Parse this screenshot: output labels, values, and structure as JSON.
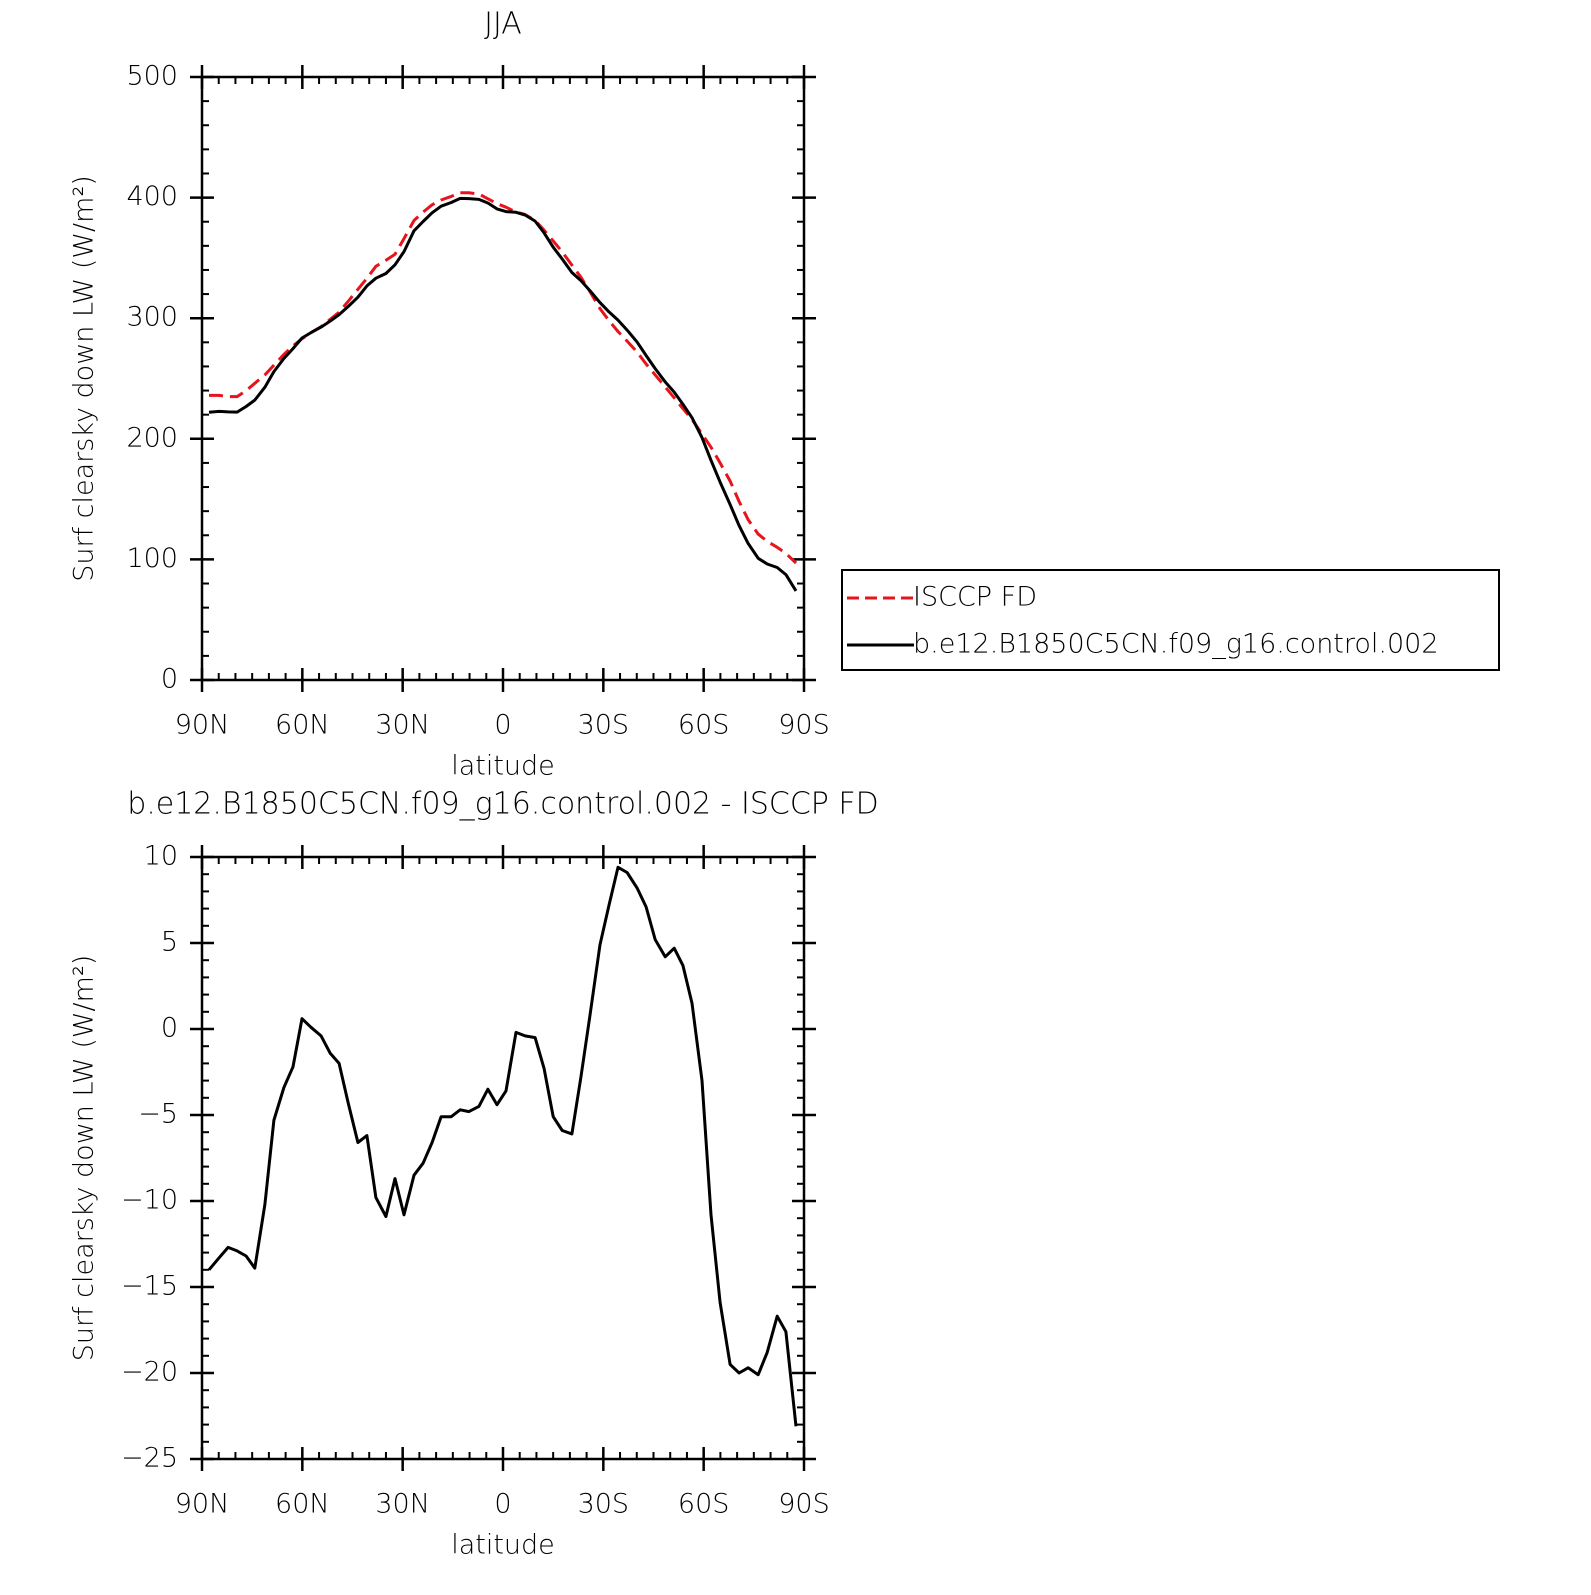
{
  "chart_data": [
    {
      "type": "line",
      "title": "JJA",
      "xlabel": "latitude",
      "ylabel": "Surf clearsky down LW (W/m²)",
      "xlim": [
        90,
        -90
      ],
      "xticks": [
        {
          "value": 90,
          "label": "90N"
        },
        {
          "value": 60,
          "label": "60N"
        },
        {
          "value": 30,
          "label": "30N"
        },
        0,
        {
          "value": -30,
          "label": "30S"
        },
        {
          "value": -60,
          "label": "60S"
        },
        {
          "value": -90,
          "label": "90S"
        }
      ],
      "xminor_step": 5,
      "ylim": [
        0,
        500
      ],
      "yticks": [
        0,
        100,
        200,
        300,
        400,
        500
      ],
      "yminor_step": 20,
      "legend": "right",
      "x": [
        87.9,
        84.9,
        82.2,
        79.5,
        76.8,
        74.2,
        71.2,
        68.5,
        65.5,
        62.8,
        60.1,
        57.4,
        54.4,
        51.7,
        49.0,
        46.3,
        43.4,
        40.7,
        38.0,
        35.0,
        32.3,
        29.6,
        26.6,
        23.9,
        21.2,
        18.5,
        15.5,
        12.8,
        10.2,
        7.2,
        4.5,
        1.8,
        -0.9,
        -3.9,
        -6.6,
        -9.6,
        -12.3,
        -15.0,
        -17.7,
        -20.6,
        -23.3,
        -26.0,
        -29.0,
        -31.7,
        -34.4,
        -37.1,
        -40.1,
        -42.8,
        -45.5,
        -48.5,
        -51.2,
        -53.8,
        -56.5,
        -59.5,
        -62.2,
        -64.9,
        -67.9,
        -70.6,
        -73.3,
        -76.3,
        -79.0,
        -82.0,
        -84.6,
        -87.6
      ],
      "series": [
        {
          "name": "ISCCP FD",
          "color": "#e8141c",
          "dash": true,
          "values": [
            236,
            236,
            235,
            235,
            240,
            246,
            253,
            261,
            270,
            277,
            283,
            288,
            293,
            299,
            305,
            314,
            324,
            333,
            343,
            348,
            353,
            366,
            381,
            388,
            394,
            398,
            401,
            404,
            404,
            403,
            399,
            395,
            392,
            388,
            386,
            381,
            373,
            364,
            355,
            344,
            334,
            322,
            308,
            298,
            289,
            281,
            272,
            262,
            253,
            243,
            234,
            225,
            216,
            204,
            193,
            180,
            165,
            148,
            133,
            121,
            115,
            110,
            105,
            97
          ]
        },
        {
          "name": "b.e12.B1850C5CN.f09_g16.control.002",
          "color": "#000000",
          "dash": false,
          "values": [
            222,
            222.7,
            222.3,
            222.1,
            226.8,
            232.1,
            242.8,
            255.7,
            266.6,
            274.8,
            283.6,
            288.1,
            292.6,
            297.6,
            303,
            309.7,
            317.4,
            326.8,
            333.2,
            337.1,
            344.3,
            355.2,
            372.5,
            380.2,
            387.4,
            392.9,
            395.9,
            399.3,
            399.2,
            398.5,
            395.5,
            390.6,
            388.4,
            387.8,
            385.6,
            380.5,
            370.7,
            358.9,
            349.1,
            337.9,
            331.2,
            322.8,
            312.9,
            305.2,
            298.4,
            290.1,
            280.2,
            269.1,
            258.2,
            247.2,
            238.7,
            228.7,
            217.5,
            201,
            182.2,
            164.1,
            145.5,
            128,
            113.3,
            100.9,
            96.2,
            93.3,
            87.4,
            73.9
          ]
        }
      ]
    },
    {
      "type": "line",
      "title": "b.e12.B1850C5CN.f09_g16.control.002 - ISCCP FD",
      "xlabel": "latitude",
      "ylabel": "Surf clearsky down LW (W/m²)",
      "xlim": [
        90,
        -90
      ],
      "xticks": [
        {
          "value": 90,
          "label": "90N"
        },
        {
          "value": 60,
          "label": "60N"
        },
        {
          "value": 30,
          "label": "30N"
        },
        0,
        {
          "value": -30,
          "label": "30S"
        },
        {
          "value": -60,
          "label": "60S"
        },
        {
          "value": -90,
          "label": "90S"
        }
      ],
      "xminor_step": 5,
      "ylim": [
        -25,
        10
      ],
      "yticks": [
        {
          "value": -25,
          "label": "−25"
        },
        {
          "value": -20,
          "label": "−20"
        },
        {
          "value": -15,
          "label": "−15"
        },
        {
          "value": -10,
          "label": "−10"
        },
        {
          "value": -5,
          "label": "−5"
        },
        0,
        5,
        10
      ],
      "yminor_step": 1,
      "x": [
        87.9,
        84.9,
        82.2,
        79.5,
        76.8,
        74.2,
        71.2,
        68.5,
        65.5,
        62.8,
        60.1,
        57.4,
        54.4,
        51.7,
        49.0,
        46.3,
        43.4,
        40.7,
        38.0,
        35.0,
        32.3,
        29.6,
        26.6,
        23.9,
        21.2,
        18.5,
        15.5,
        12.8,
        10.2,
        7.2,
        4.5,
        1.8,
        -0.9,
        -3.9,
        -6.6,
        -9.6,
        -12.3,
        -15.0,
        -17.7,
        -20.6,
        -23.3,
        -26.0,
        -29.0,
        -31.7,
        -34.4,
        -37.1,
        -40.1,
        -42.8,
        -45.5,
        -48.5,
        -51.2,
        -53.8,
        -56.5,
        -59.5,
        -62.2,
        -64.9,
        -67.9,
        -70.6,
        -73.3,
        -76.3,
        -79.0,
        -82.0,
        -84.6,
        -87.6
      ],
      "color": "#000000",
      "values": [
        -14.0,
        -13.3,
        -12.7,
        -12.9,
        -13.2,
        -13.9,
        -10.2,
        -5.3,
        -3.4,
        -2.2,
        0.6,
        0.1,
        -0.4,
        -1.4,
        -2.0,
        -4.3,
        -6.6,
        -6.2,
        -9.8,
        -10.9,
        -8.7,
        -10.8,
        -8.5,
        -7.8,
        -6.6,
        -5.1,
        -5.1,
        -4.7,
        -4.8,
        -4.5,
        -3.5,
        -4.4,
        -3.6,
        -0.2,
        -0.4,
        -0.5,
        -2.3,
        -5.1,
        -5.9,
        -6.1,
        -2.8,
        0.8,
        4.9,
        7.2,
        9.4,
        9.1,
        8.2,
        7.1,
        5.2,
        4.2,
        4.7,
        3.7,
        1.5,
        -3.0,
        -10.8,
        -15.9,
        -19.5,
        -20.0,
        -19.7,
        -20.1,
        -18.8,
        -16.7,
        -17.6,
        -23.1
      ]
    }
  ]
}
